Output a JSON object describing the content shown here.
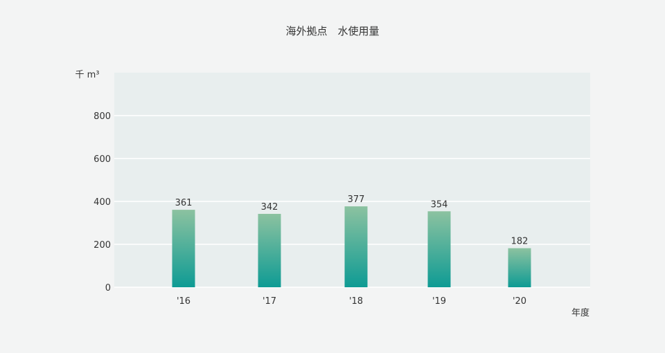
{
  "chart_data": {
    "type": "bar",
    "title": "海外拠点　水使用量",
    "ylabel": "千 m³",
    "xlabel": "年度",
    "categories": [
      "'16",
      "'17",
      "'18",
      "'19",
      "'20"
    ],
    "series": [
      {
        "values": [
          361,
          342,
          377,
          354,
          182
        ]
      }
    ],
    "ylim": [
      0,
      1000
    ],
    "yticks": [
      0,
      200,
      400,
      600,
      800
    ],
    "grid": true,
    "legend": "none",
    "colors": {
      "plot_background": "#e8eeee",
      "bar_top": "#8cc2a0",
      "bar_bottom": "#0e9b94",
      "gridline": "#ffffff",
      "text": "#333333"
    }
  }
}
